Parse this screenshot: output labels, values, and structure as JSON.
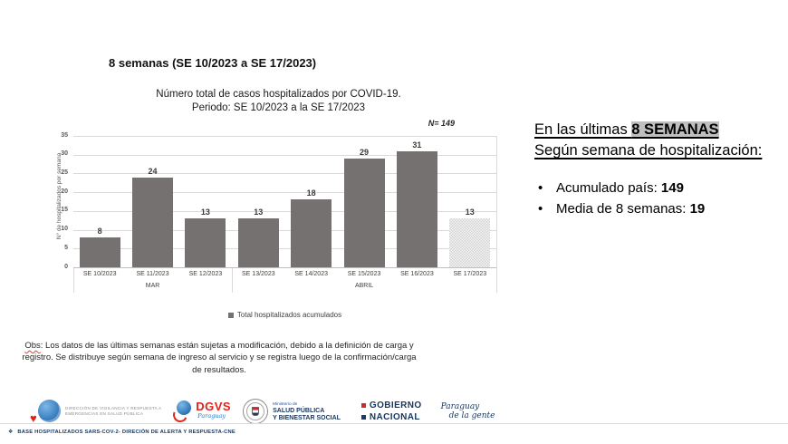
{
  "slide_title": "8 semanas (SE 10/2023 a SE 17/2023)",
  "chart": {
    "title_line1": "Número total de casos hospitalizados por COVID-19.",
    "title_line2": "Periodo:  SE 10/2023 a la SE 17/2023",
    "n_label": "N= 149",
    "y_axis_title": "N° de hospitalizados por semana",
    "legend_label": "Total hospitalizados acumulados"
  },
  "chart_data": {
    "type": "bar",
    "title": "Número total de casos hospitalizados por COVID-19. Periodo: SE 10/2023 a la SE 17/2023",
    "categories": [
      "SE 10/2023",
      "SE 11/2023",
      "SE 12/2023",
      "SE 13/2023",
      "SE 14/2023",
      "SE 15/2023",
      "SE 16/2023",
      "SE 17/2023"
    ],
    "values": [
      8,
      24,
      13,
      13,
      18,
      29,
      31,
      13
    ],
    "series_name": "Total hospitalizados acumulados",
    "month_groups": [
      {
        "label": "MAR",
        "start": 0,
        "span": 3
      },
      {
        "label": "ABRIL",
        "start": 3,
        "span": 5
      }
    ],
    "ylabel": "N° de hospitalizados por semana",
    "ylim": [
      0,
      35
    ],
    "yticks": [
      0,
      5,
      10,
      15,
      20,
      25,
      30,
      35
    ],
    "n_total": 149,
    "bar_color": "#767171",
    "pattern_bar_index": 7,
    "grid": true,
    "legend_position": "bottom"
  },
  "summary": {
    "heading_prefix": "En las últimas ",
    "heading_highlight": "8 SEMANAS",
    "heading_line2": "Según semana de hospitalización:",
    "bullets": [
      {
        "label": "Acumulado país: ",
        "value": "149"
      },
      {
        "label": "Media de 8 semanas: ",
        "value": "19"
      }
    ]
  },
  "obs": {
    "label": "Obs",
    "text": ": Los datos de las últimas semanas están sujetas a modificación, debido a la definición de carga y registro. Se distribuye según semana de ingreso al servicio y se registra luego de la confirmación/carga de resultados."
  },
  "logos": {
    "dvresp_line1": "Dirección de Vigilancia y Respuesta a",
    "dvresp_line2": "Emergencias en Salud Pública",
    "dgvs": "DGVS",
    "dgvs_script": "Paraguay",
    "ministry_line1": "Ministerio de",
    "ministry_line2": "SALUD PÚBLICA",
    "ministry_line3": "Y BIENESTAR SOCIAL",
    "gobierno": "GOBIERNO",
    "nacional": "NACIONAL",
    "paraguay_line1": "Paraguay",
    "paraguay_line2": "de la gente"
  },
  "footer": {
    "diamond": "❖",
    "text": "BASE HOSPITALIZADOS SARS-COV-2- DIRECIÓN DE ALERTA Y RESPUESTA-CNE"
  },
  "colors": {
    "bar_gray": "#767171",
    "gridline": "#d9d9d9",
    "highlight_gray": "#bfbfbf",
    "brand_red": "#d22630",
    "brand_navy": "#17365d",
    "brand_blue": "#2e75b6"
  }
}
